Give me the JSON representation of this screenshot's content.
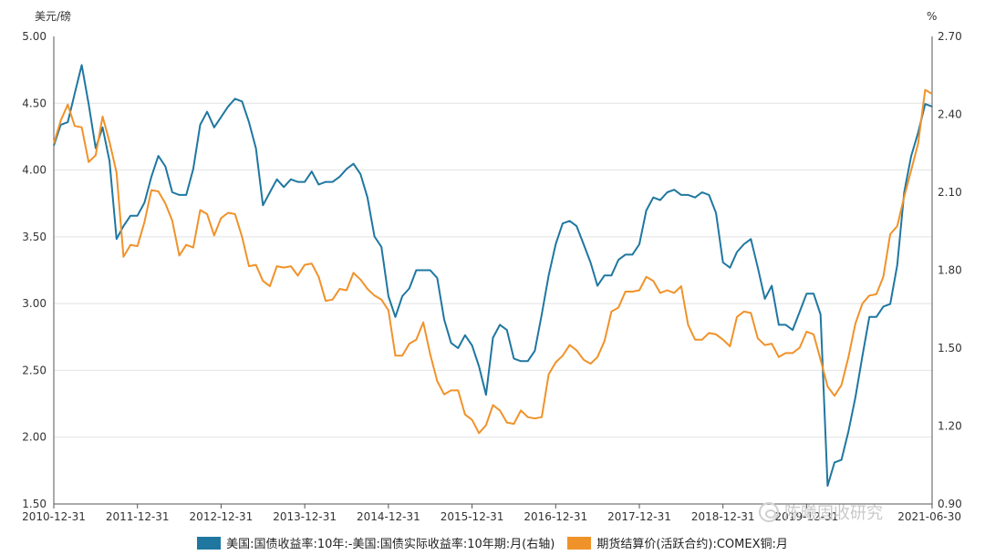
{
  "chart_data": {
    "type": "line",
    "left_axis": {
      "unit": "美元/磅",
      "ylim": [
        1.5,
        5.0
      ],
      "ticks": [
        "5.00",
        "4.50",
        "4.00",
        "3.50",
        "3.00",
        "2.50",
        "2.00",
        "1.50"
      ]
    },
    "right_axis": {
      "unit": "%",
      "ylim": [
        0.9,
        2.7
      ],
      "ticks": [
        "2.70",
        "2.40",
        "2.10",
        "1.80",
        "1.50",
        "1.20",
        "0.90"
      ]
    },
    "x_ticks": [
      "2010-12-31",
      "2011-12-31",
      "2012-12-31",
      "2013-12-31",
      "2014-12-31",
      "2015-12-31",
      "2016-12-31",
      "2017-12-31",
      "2018-12-31",
      "2019-12-31",
      "2021-06-30"
    ],
    "x_range": [
      "2010-12",
      "2021-06"
    ],
    "grid": "horizontal",
    "legend_position": "bottom",
    "series": [
      {
        "name": "美国:国债收益率:10年:-美国:国债实际收益率:10年期:月(右轴)",
        "axis": "right",
        "color": "#1f77a0",
        "points": [
          [
            "2010-12",
            2.28
          ],
          [
            "2011-01",
            2.36
          ],
          [
            "2011-02",
            2.37
          ],
          [
            "2011-03",
            2.48
          ],
          [
            "2011-04",
            2.59
          ],
          [
            "2011-05",
            2.44
          ],
          [
            "2011-06",
            2.27
          ],
          [
            "2011-07",
            2.35
          ],
          [
            "2011-08",
            2.22
          ],
          [
            "2011-09",
            1.92
          ],
          [
            "2011-10",
            1.97
          ],
          [
            "2011-11",
            2.01
          ],
          [
            "2011-12",
            2.01
          ],
          [
            "2012-01",
            2.06
          ],
          [
            "2012-02",
            2.16
          ],
          [
            "2012-03",
            2.24
          ],
          [
            "2012-04",
            2.2
          ],
          [
            "2012-05",
            2.1
          ],
          [
            "2012-06",
            2.09
          ],
          [
            "2012-07",
            2.09
          ],
          [
            "2012-08",
            2.19
          ],
          [
            "2012-09",
            2.36
          ],
          [
            "2012-10",
            2.41
          ],
          [
            "2012-11",
            2.35
          ],
          [
            "2012-12",
            2.39
          ],
          [
            "2013-01",
            2.43
          ],
          [
            "2013-02",
            2.46
          ],
          [
            "2013-03",
            2.45
          ],
          [
            "2013-04",
            2.37
          ],
          [
            "2013-05",
            2.27
          ],
          [
            "2013-06",
            2.05
          ],
          [
            "2013-07",
            2.1
          ],
          [
            "2013-08",
            2.15
          ],
          [
            "2013-09",
            2.12
          ],
          [
            "2013-10",
            2.15
          ],
          [
            "2013-11",
            2.14
          ],
          [
            "2013-12",
            2.14
          ],
          [
            "2014-01",
            2.18
          ],
          [
            "2014-02",
            2.13
          ],
          [
            "2014-03",
            2.14
          ],
          [
            "2014-04",
            2.14
          ],
          [
            "2014-05",
            2.16
          ],
          [
            "2014-06",
            2.19
          ],
          [
            "2014-07",
            2.21
          ],
          [
            "2014-08",
            2.17
          ],
          [
            "2014-09",
            2.08
          ],
          [
            "2014-10",
            1.93
          ],
          [
            "2014-11",
            1.89
          ],
          [
            "2014-12",
            1.7
          ],
          [
            "2015-01",
            1.62
          ],
          [
            "2015-02",
            1.7
          ],
          [
            "2015-03",
            1.73
          ],
          [
            "2015-04",
            1.8
          ],
          [
            "2015-05",
            1.8
          ],
          [
            "2015-06",
            1.8
          ],
          [
            "2015-07",
            1.77
          ],
          [
            "2015-08",
            1.61
          ],
          [
            "2015-09",
            1.52
          ],
          [
            "2015-10",
            1.5
          ],
          [
            "2015-11",
            1.55
          ],
          [
            "2015-12",
            1.51
          ],
          [
            "2016-01",
            1.43
          ],
          [
            "2016-02",
            1.32
          ],
          [
            "2016-03",
            1.54
          ],
          [
            "2016-04",
            1.59
          ],
          [
            "2016-05",
            1.57
          ],
          [
            "2016-06",
            1.46
          ],
          [
            "2016-07",
            1.45
          ],
          [
            "2016-08",
            1.45
          ],
          [
            "2016-09",
            1.49
          ],
          [
            "2016-10",
            1.63
          ],
          [
            "2016-11",
            1.78
          ],
          [
            "2016-12",
            1.9
          ],
          [
            "2017-01",
            1.98
          ],
          [
            "2017-02",
            1.99
          ],
          [
            "2017-03",
            1.97
          ],
          [
            "2017-04",
            1.9
          ],
          [
            "2017-05",
            1.83
          ],
          [
            "2017-06",
            1.74
          ],
          [
            "2017-07",
            1.78
          ],
          [
            "2017-08",
            1.78
          ],
          [
            "2017-09",
            1.84
          ],
          [
            "2017-10",
            1.86
          ],
          [
            "2017-11",
            1.86
          ],
          [
            "2017-12",
            1.9
          ],
          [
            "2018-01",
            2.03
          ],
          [
            "2018-02",
            2.08
          ],
          [
            "2018-03",
            2.07
          ],
          [
            "2018-04",
            2.1
          ],
          [
            "2018-05",
            2.11
          ],
          [
            "2018-06",
            2.09
          ],
          [
            "2018-07",
            2.09
          ],
          [
            "2018-08",
            2.08
          ],
          [
            "2018-09",
            2.1
          ],
          [
            "2018-10",
            2.09
          ],
          [
            "2018-11",
            2.02
          ],
          [
            "2018-12",
            1.83
          ],
          [
            "2019-01",
            1.81
          ],
          [
            "2019-02",
            1.87
          ],
          [
            "2019-03",
            1.9
          ],
          [
            "2019-04",
            1.92
          ],
          [
            "2019-05",
            1.81
          ],
          [
            "2019-06",
            1.69
          ],
          [
            "2019-07",
            1.74
          ],
          [
            "2019-08",
            1.59
          ],
          [
            "2019-09",
            1.59
          ],
          [
            "2019-10",
            1.57
          ],
          [
            "2019-11",
            1.64
          ],
          [
            "2019-12",
            1.71
          ],
          [
            "2020-01",
            1.71
          ],
          [
            "2020-02",
            1.63
          ],
          [
            "2020-03",
            0.97
          ],
          [
            "2020-04",
            1.06
          ],
          [
            "2020-05",
            1.07
          ],
          [
            "2020-06",
            1.18
          ],
          [
            "2020-07",
            1.31
          ],
          [
            "2020-08",
            1.47
          ],
          [
            "2020-09",
            1.62
          ],
          [
            "2020-10",
            1.62
          ],
          [
            "2020-11",
            1.66
          ],
          [
            "2020-12",
            1.67
          ],
          [
            "2021-01",
            1.82
          ],
          [
            "2021-02",
            2.1
          ],
          [
            "2021-03",
            2.24
          ],
          [
            "2021-04",
            2.33
          ],
          [
            "2021-05",
            2.44
          ],
          [
            "2021-06",
            2.43
          ]
        ]
      },
      {
        "name": "期货结算价(活跃合约):COMEX铜:月",
        "axis": "left",
        "color": "#f0922a",
        "points": [
          [
            "2010-12",
            4.2
          ],
          [
            "2011-01",
            4.37
          ],
          [
            "2011-02",
            4.49
          ],
          [
            "2011-03",
            4.33
          ],
          [
            "2011-04",
            4.32
          ],
          [
            "2011-05",
            4.06
          ],
          [
            "2011-06",
            4.11
          ],
          [
            "2011-07",
            4.4
          ],
          [
            "2011-08",
            4.21
          ],
          [
            "2011-09",
            3.98
          ],
          [
            "2011-10",
            3.35
          ],
          [
            "2011-11",
            3.44
          ],
          [
            "2011-12",
            3.43
          ],
          [
            "2012-01",
            3.61
          ],
          [
            "2012-02",
            3.85
          ],
          [
            "2012-03",
            3.84
          ],
          [
            "2012-04",
            3.75
          ],
          [
            "2012-05",
            3.62
          ],
          [
            "2012-06",
            3.36
          ],
          [
            "2012-07",
            3.44
          ],
          [
            "2012-08",
            3.42
          ],
          [
            "2012-09",
            3.7
          ],
          [
            "2012-10",
            3.67
          ],
          [
            "2012-11",
            3.51
          ],
          [
            "2012-12",
            3.64
          ],
          [
            "2013-01",
            3.68
          ],
          [
            "2013-02",
            3.67
          ],
          [
            "2013-03",
            3.5
          ],
          [
            "2013-04",
            3.28
          ],
          [
            "2013-05",
            3.29
          ],
          [
            "2013-06",
            3.17
          ],
          [
            "2013-07",
            3.13
          ],
          [
            "2013-08",
            3.28
          ],
          [
            "2013-09",
            3.27
          ],
          [
            "2013-10",
            3.28
          ],
          [
            "2013-11",
            3.21
          ],
          [
            "2013-12",
            3.29
          ],
          [
            "2014-01",
            3.3
          ],
          [
            "2014-02",
            3.2
          ],
          [
            "2014-03",
            3.02
          ],
          [
            "2014-04",
            3.03
          ],
          [
            "2014-05",
            3.11
          ],
          [
            "2014-06",
            3.1
          ],
          [
            "2014-07",
            3.23
          ],
          [
            "2014-08",
            3.18
          ],
          [
            "2014-09",
            3.11
          ],
          [
            "2014-10",
            3.06
          ],
          [
            "2014-11",
            3.03
          ],
          [
            "2014-12",
            2.95
          ],
          [
            "2015-01",
            2.61
          ],
          [
            "2015-02",
            2.61
          ],
          [
            "2015-03",
            2.7
          ],
          [
            "2015-04",
            2.73
          ],
          [
            "2015-05",
            2.86
          ],
          [
            "2015-06",
            2.62
          ],
          [
            "2015-07",
            2.42
          ],
          [
            "2015-08",
            2.32
          ],
          [
            "2015-09",
            2.35
          ],
          [
            "2015-10",
            2.35
          ],
          [
            "2015-11",
            2.17
          ],
          [
            "2015-12",
            2.13
          ],
          [
            "2016-01",
            2.03
          ],
          [
            "2016-02",
            2.09
          ],
          [
            "2016-03",
            2.24
          ],
          [
            "2016-04",
            2.2
          ],
          [
            "2016-05",
            2.11
          ],
          [
            "2016-06",
            2.1
          ],
          [
            "2016-07",
            2.2
          ],
          [
            "2016-08",
            2.15
          ],
          [
            "2016-09",
            2.14
          ],
          [
            "2016-10",
            2.15
          ],
          [
            "2016-11",
            2.47
          ],
          [
            "2016-12",
            2.56
          ],
          [
            "2017-01",
            2.61
          ],
          [
            "2017-02",
            2.69
          ],
          [
            "2017-03",
            2.65
          ],
          [
            "2017-04",
            2.58
          ],
          [
            "2017-05",
            2.55
          ],
          [
            "2017-06",
            2.6
          ],
          [
            "2017-07",
            2.72
          ],
          [
            "2017-08",
            2.94
          ],
          [
            "2017-09",
            2.97
          ],
          [
            "2017-10",
            3.09
          ],
          [
            "2017-11",
            3.09
          ],
          [
            "2017-12",
            3.1
          ],
          [
            "2018-01",
            3.2
          ],
          [
            "2018-02",
            3.17
          ],
          [
            "2018-03",
            3.08
          ],
          [
            "2018-04",
            3.1
          ],
          [
            "2018-05",
            3.08
          ],
          [
            "2018-06",
            3.13
          ],
          [
            "2018-07",
            2.84
          ],
          [
            "2018-08",
            2.73
          ],
          [
            "2018-09",
            2.73
          ],
          [
            "2018-10",
            2.78
          ],
          [
            "2018-11",
            2.77
          ],
          [
            "2018-12",
            2.73
          ],
          [
            "2019-01",
            2.68
          ],
          [
            "2019-02",
            2.9
          ],
          [
            "2019-03",
            2.94
          ],
          [
            "2019-04",
            2.93
          ],
          [
            "2019-05",
            2.74
          ],
          [
            "2019-06",
            2.69
          ],
          [
            "2019-07",
            2.7
          ],
          [
            "2019-08",
            2.6
          ],
          [
            "2019-09",
            2.63
          ],
          [
            "2019-10",
            2.63
          ],
          [
            "2019-11",
            2.67
          ],
          [
            "2019-12",
            2.79
          ],
          [
            "2020-01",
            2.77
          ],
          [
            "2020-02",
            2.58
          ],
          [
            "2020-03",
            2.38
          ],
          [
            "2020-04",
            2.31
          ],
          [
            "2020-05",
            2.39
          ],
          [
            "2020-06",
            2.6
          ],
          [
            "2020-07",
            2.85
          ],
          [
            "2020-08",
            3.0
          ],
          [
            "2020-09",
            3.06
          ],
          [
            "2020-10",
            3.07
          ],
          [
            "2020-11",
            3.2
          ],
          [
            "2020-12",
            3.52
          ],
          [
            "2021-01",
            3.58
          ],
          [
            "2021-02",
            3.8
          ],
          [
            "2021-03",
            4.0
          ],
          [
            "2021-04",
            4.2
          ],
          [
            "2021-05",
            4.6
          ],
          [
            "2021-06",
            4.57
          ]
        ]
      }
    ]
  },
  "watermark": {
    "text": "陈曦固收研究"
  }
}
